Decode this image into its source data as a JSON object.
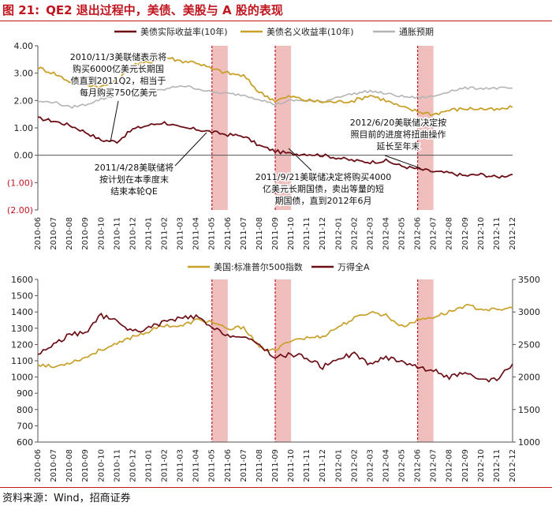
{
  "figure": {
    "label": "图 21:",
    "title": "QE2 退出过程中，美债、美股与 A 股的表现",
    "source": "资料来源：Wind，招商证券"
  },
  "colors": {
    "real_yield": "#6b0e16",
    "nominal_yield": "#c8a02a",
    "inflation": "#b4b4b4",
    "sp500": "#c8a02a",
    "wind_a": "#6b0e16",
    "shade": "#efb3b3",
    "marker": "#c0141e",
    "accent_red": "#c0141e"
  },
  "months": [
    "2010-06",
    "2010-07",
    "2010-08",
    "2010-09",
    "2010-10",
    "2010-11",
    "2010-12",
    "2011-01",
    "2011-02",
    "2011-03",
    "2011-04",
    "2011-05",
    "2011-06",
    "2011-07",
    "2011-08",
    "2011-09",
    "2011-10",
    "2011-11",
    "2011-12",
    "2012-01",
    "2012-02",
    "2012-03",
    "2012-04",
    "2012-05",
    "2012-06",
    "2012-07",
    "2012-08",
    "2012-09",
    "2012-10",
    "2012-11",
    "2012-12"
  ],
  "shaded_periods": [
    [
      "2011-05",
      "2011-06"
    ],
    [
      "2011-09",
      "2011-10"
    ],
    [
      "2012-06",
      "2012-07"
    ]
  ],
  "chart_data": [
    {
      "type": "line",
      "legend": [
        "美债实际收益率(10年)",
        "美债名义收益率(10年)",
        "通胀预期"
      ],
      "yticks": [
        "4.00",
        "3.00",
        "2.00",
        "1.00",
        "0.00",
        "(1.00)",
        "(2.00)"
      ],
      "ylim": [
        -2,
        4
      ],
      "series": [
        {
          "name": "美债实际收益率(10年)",
          "values": [
            1.35,
            1.25,
            1.1,
            0.85,
            0.55,
            0.5,
            0.95,
            1.1,
            1.2,
            1.0,
            0.95,
            0.85,
            0.75,
            0.7,
            0.35,
            0.15,
            0.05,
            0.05,
            0.0,
            -0.1,
            -0.2,
            -0.25,
            -0.2,
            -0.4,
            -0.5,
            -0.6,
            -0.65,
            -0.75,
            -0.7,
            -0.8,
            -0.7
          ]
        },
        {
          "name": "美债名义收益率(10年)",
          "values": [
            3.2,
            3.0,
            2.7,
            2.6,
            2.5,
            2.7,
            3.3,
            3.4,
            3.6,
            3.45,
            3.4,
            3.15,
            3.0,
            2.9,
            2.3,
            2.0,
            2.15,
            2.0,
            1.95,
            1.95,
            2.0,
            2.2,
            2.0,
            1.75,
            1.6,
            1.5,
            1.65,
            1.7,
            1.7,
            1.65,
            1.75
          ]
        },
        {
          "name": "通胀预期",
          "values": [
            1.95,
            1.95,
            1.75,
            1.85,
            2.05,
            2.2,
            2.3,
            2.3,
            2.4,
            2.55,
            2.45,
            2.3,
            2.25,
            2.2,
            2.05,
            1.85,
            2.0,
            2.0,
            1.95,
            2.15,
            2.25,
            2.35,
            2.25,
            2.15,
            2.1,
            2.15,
            2.35,
            2.45,
            2.45,
            2.45,
            2.45
          ]
        }
      ],
      "annotations": [
        {
          "id": "qe2-launch",
          "lines": [
            "2010/11/3美联储表示将",
            "购买6000亿美元长期国",
            "债直到2011Q2，相当于",
            "每月购买750亿美元"
          ]
        },
        {
          "id": "qe2-end",
          "lines": [
            "2011/4/28美联储将",
            "按计划在本季度末",
            "结束本轮QE"
          ]
        },
        {
          "id": "twist",
          "lines": [
            "2011/9/21美联储决定将购买4000",
            "亿美元长期国债，卖出等量的短",
            "期国债，直到2012年6月"
          ]
        },
        {
          "id": "twist-extend",
          "lines": [
            "2012/6/20美联储决定按",
            "照目前的进度将扭曲操作",
            "延长至年末"
          ]
        }
      ]
    },
    {
      "type": "line",
      "legend": [
        "美国:标准普尔500指数",
        "万得全A"
      ],
      "yticks_left": [
        "1600",
        "1500",
        "1400",
        "1300",
        "1200",
        "1100",
        "1000",
        "900",
        "800",
        "700",
        "600"
      ],
      "yticks_right": [
        "3500",
        "3000",
        "2500",
        "2000",
        "1500",
        "1000"
      ],
      "ylim_left": [
        600,
        1600
      ],
      "ylim_right": [
        1000,
        3500
      ],
      "series": [
        {
          "name": "美国:标准普尔500指数",
          "axis": "left",
          "values": [
            1080,
            1060,
            1090,
            1120,
            1170,
            1200,
            1250,
            1280,
            1320,
            1310,
            1350,
            1340,
            1290,
            1310,
            1180,
            1160,
            1230,
            1240,
            1250,
            1310,
            1360,
            1400,
            1380,
            1310,
            1350,
            1370,
            1400,
            1440,
            1420,
            1410,
            1425
          ]
        },
        {
          "name": "万得全A",
          "axis": "right",
          "values": [
            2350,
            2500,
            2650,
            2680,
            2950,
            2850,
            2700,
            2750,
            2850,
            2900,
            2930,
            2750,
            2650,
            2600,
            2500,
            2300,
            2350,
            2300,
            2150,
            2300,
            2350,
            2200,
            2300,
            2250,
            2150,
            2100,
            2000,
            2050,
            1950,
            1950,
            2200
          ]
        }
      ]
    }
  ]
}
